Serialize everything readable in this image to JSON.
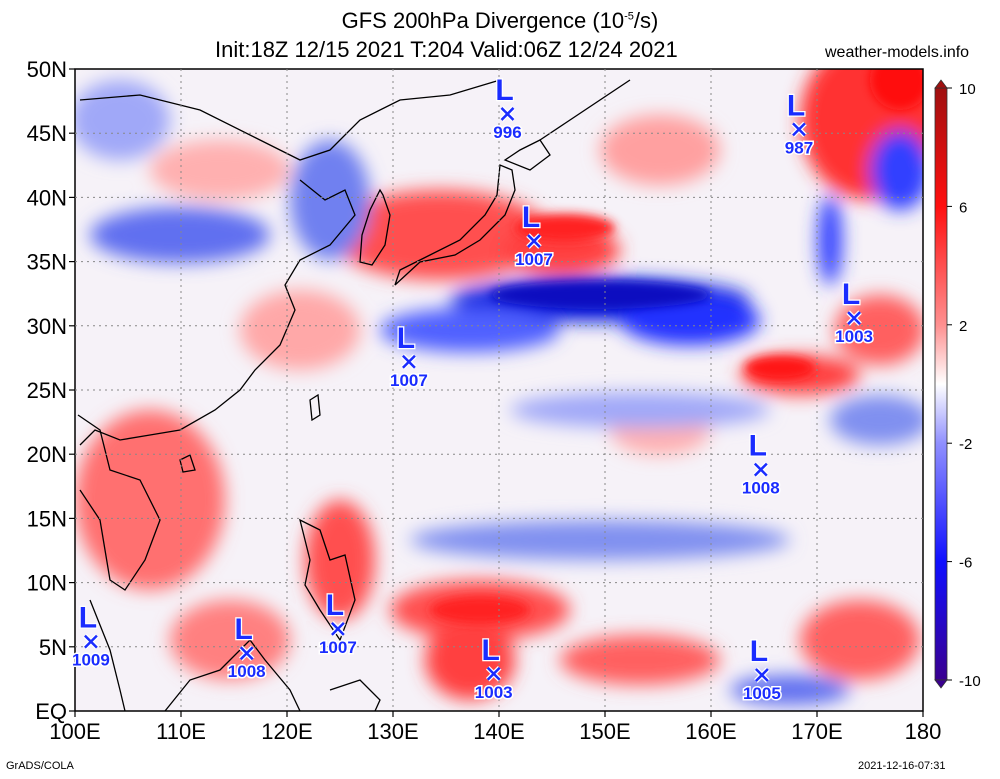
{
  "header": {
    "title_line1_prefix": "GFS 200hPa Divergence (10",
    "title_line1_exp": "-5",
    "title_line1_suffix": "/s)",
    "title_line2": "Init:18Z 12/15 2021 T:204 Valid:06Z 12/24 2021",
    "site": "weather-models.info"
  },
  "footer": {
    "left": "GrADS/COLA",
    "right": "2021-12-16-07:31"
  },
  "map": {
    "lon_labels": [
      "100E",
      "110E",
      "120E",
      "130E",
      "140E",
      "150E",
      "160E",
      "170E",
      "180"
    ],
    "lat_labels": [
      "50N",
      "45N",
      "40N",
      "35N",
      "30N",
      "25N",
      "20N",
      "15N",
      "10N",
      "5N",
      "EQ"
    ],
    "lon_range": [
      100,
      180
    ],
    "lat_range": [
      0,
      50
    ],
    "grid": "dotted"
  },
  "colorbar": {
    "range": [
      -10,
      10
    ],
    "tick_labels": [
      "10",
      "6",
      "2",
      "-2",
      "-6",
      "-10"
    ],
    "colors": {
      "max": "#c80000",
      "high": "#ff2020",
      "mid_pos": "#ff9090",
      "zero": "#ffffff",
      "mid_neg": "#9090ff",
      "low": "#2020ff",
      "min": "#3a0090"
    }
  },
  "lows": [
    {
      "label": "L",
      "pressure": "996",
      "lon": 140.8,
      "lat": 46.5
    },
    {
      "label": "L",
      "pressure": "987",
      "lon": 168.3,
      "lat": 45.3
    },
    {
      "label": "L",
      "pressure": "1007",
      "lon": 143.3,
      "lat": 36.6
    },
    {
      "label": "L",
      "pressure": "1003",
      "lon": 173.5,
      "lat": 30.6
    },
    {
      "label": "L",
      "pressure": "1007",
      "lon": 131.5,
      "lat": 27.2
    },
    {
      "label": "L",
      "pressure": "1008",
      "lon": 164.7,
      "lat": 18.8
    },
    {
      "label": "L",
      "pressure": "1009",
      "lon": 101.5,
      "lat": 5.4
    },
    {
      "label": "L",
      "pressure": "1008",
      "lon": 116.2,
      "lat": 4.5
    },
    {
      "label": "L",
      "pressure": "1007",
      "lon": 124.8,
      "lat": 6.4
    },
    {
      "label": "L",
      "pressure": "1003",
      "lon": 139.5,
      "lat": 2.9
    },
    {
      "label": "L",
      "pressure": "1005",
      "lon": 164.8,
      "lat": 2.8
    }
  ]
}
